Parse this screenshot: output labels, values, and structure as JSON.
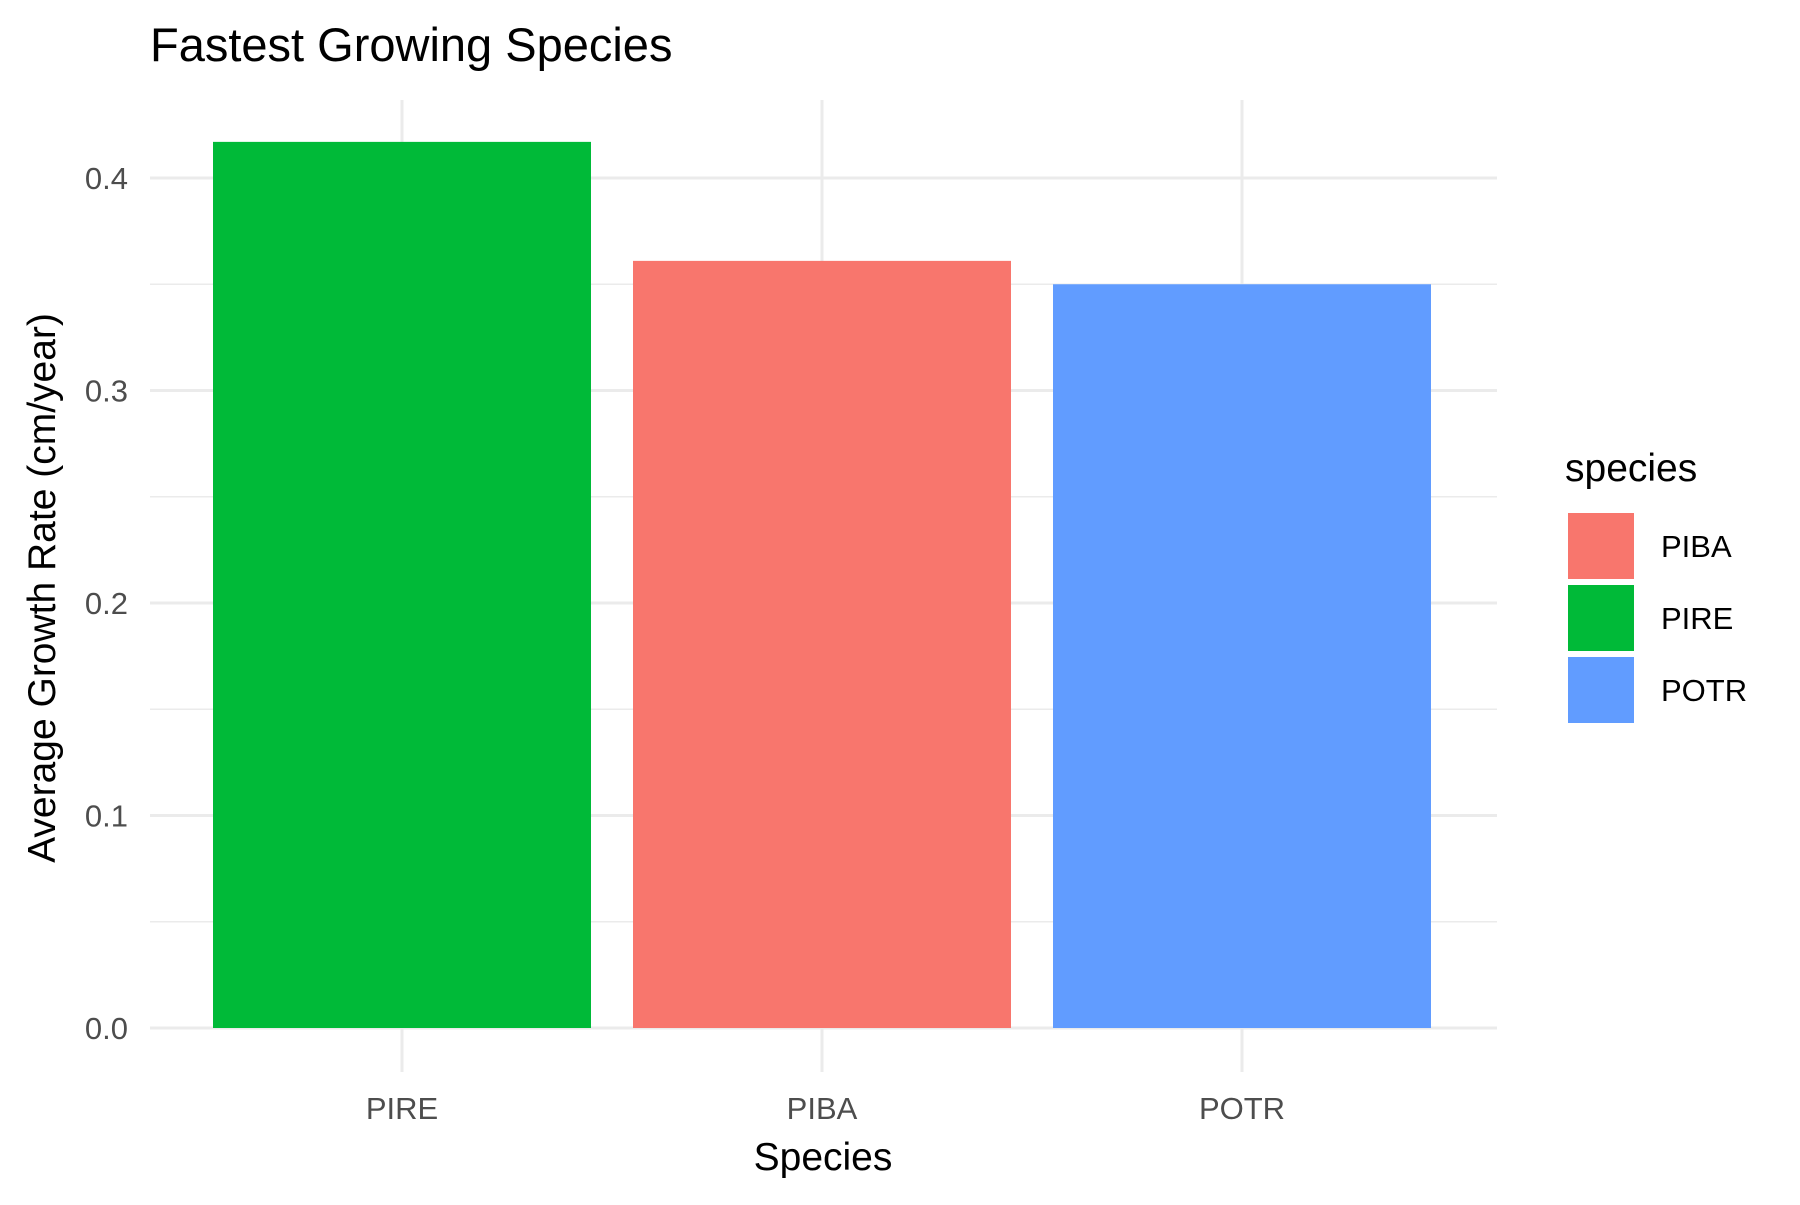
{
  "chart_data": {
    "type": "bar",
    "title": "Fastest Growing Species",
    "xlabel": "Species",
    "ylabel": "Average Growth Rate (cm/year)",
    "categories": [
      "PIRE",
      "PIBA",
      "POTR"
    ],
    "values": [
      0.417,
      0.361,
      0.35
    ],
    "ylim": [
      0,
      0.44
    ],
    "yticks": [
      0.0,
      0.1,
      0.2,
      0.3,
      0.4
    ],
    "ytick_labels": [
      "0.0",
      "0.1",
      "0.2",
      "0.3",
      "0.4"
    ],
    "grid": true,
    "legend": {
      "title": "species",
      "position": "right",
      "entries": [
        {
          "label": "PIBA",
          "color": "#F8766D"
        },
        {
          "label": "PIRE",
          "color": "#00BA38"
        },
        {
          "label": "POTR",
          "color": "#619CFF"
        }
      ]
    },
    "bar_colors": {
      "PIRE": "#00BA38",
      "PIBA": "#F8766D",
      "POTR": "#619CFF"
    }
  }
}
